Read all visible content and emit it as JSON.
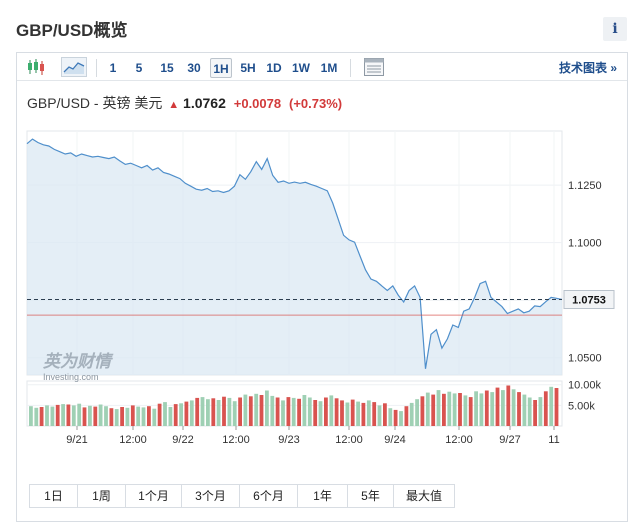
{
  "header": {
    "title": "GBP/USD概览",
    "info_label": "i"
  },
  "toolbar": {
    "chart_type_icons": [
      "candlestick-icon",
      "area-chart-icon"
    ],
    "intervals": [
      "1",
      "5",
      "15",
      "30",
      "1H",
      "5H",
      "1D",
      "1W",
      "1M"
    ],
    "active_interval": "1H",
    "table_icon": "table-icon",
    "tech_chart_label": "技术图表 »"
  },
  "quote": {
    "pair": "GBP/USD - 英镑 美元",
    "price": "1.0762",
    "change": "+0.0078",
    "change_pct": "(+0.73%)",
    "trend_icon": "up-arrow-icon",
    "accent_color": "#d23a3a"
  },
  "watermark": {
    "brand": "英为财情",
    "sub": "Investing.com"
  },
  "chart_data": {
    "type": "line",
    "title": "",
    "xlabel": "",
    "ylabel": "",
    "x_tick_labels": [
      "9/21",
      "12:00",
      "9/22",
      "12:00",
      "9/23",
      "12:00",
      "9/24",
      "12:00",
      "9/27",
      "11"
    ],
    "y_tick_labels": [
      "1.1250",
      "1.1000",
      "1.0750",
      "1.0500"
    ],
    "y_ticks": [
      1.125,
      1.1,
      1.075,
      1.05
    ],
    "ylim": [
      1.0425,
      1.1485
    ],
    "current_price_label": "1.0753",
    "current_price": 1.0753,
    "reference_price": 1.0685,
    "grid": true,
    "series": [
      {
        "values": [
          1.143,
          1.145,
          1.1435,
          1.1425,
          1.142,
          1.1405,
          1.1395,
          1.1385,
          1.139,
          1.1375,
          1.1385,
          1.1378,
          1.1372,
          1.1375,
          1.137,
          1.1365,
          1.1372,
          1.1355,
          1.134,
          1.1345,
          1.1335,
          1.1325,
          1.1335,
          1.1315,
          1.1325,
          1.1305,
          1.1298,
          1.1288,
          1.1278,
          1.1258,
          1.1245,
          1.1232,
          1.1228,
          1.1235,
          1.1222,
          1.1225,
          1.1218,
          1.1225,
          1.1245,
          1.1295,
          1.1275,
          1.1308,
          1.1352,
          1.1318,
          1.1365,
          1.1292,
          1.1262,
          1.1268,
          1.1258,
          1.1263,
          1.1258,
          1.1262,
          1.1253,
          1.1245,
          1.1235,
          1.1225,
          1.1172,
          1.1102,
          1.1032,
          1.1012,
          1.1002,
          1.0942,
          1.0882,
          1.0842,
          1.0832,
          1.0812,
          1.0792,
          1.0812,
          1.0772,
          1.0742,
          1.0792,
          1.0812,
          1.0762,
          1.0452,
          1.0602,
          1.0622,
          1.0542,
          1.0582,
          1.0642,
          1.0632,
          1.0702,
          1.0712,
          1.0762,
          1.0822,
          1.0832,
          1.0762,
          1.0742,
          1.0722,
          1.0692,
          1.0702,
          1.0712,
          1.0695,
          1.0702,
          1.0725,
          1.0722,
          1.0743,
          1.0762,
          1.0758,
          1.0753
        ]
      }
    ],
    "volume": {
      "y_tick_labels": [
        "10.00k",
        "5.00k"
      ],
      "y_ticks": [
        10000,
        5000
      ],
      "ylim": [
        0,
        10900
      ],
      "up_color": "#9fd0b4",
      "down_color": "#d9534f",
      "values": [
        4800,
        4400,
        4600,
        5000,
        4700,
        5100,
        5300,
        5200,
        5000,
        5400,
        4500,
        4900,
        4700,
        5200,
        4800,
        4300,
        4100,
        4600,
        4400,
        5000,
        4700,
        4500,
        4800,
        4200,
        5400,
        5800,
        4600,
        5300,
        5500,
        5900,
        6200,
        6800,
        7000,
        6500,
        6700,
        6300,
        7100,
        6800,
        6000,
        6900,
        7600,
        7200,
        7800,
        7500,
        8600,
        7300,
        6900,
        6200,
        7000,
        6800,
        6600,
        7500,
        6900,
        6300,
        6000,
        6900,
        7400,
        6700,
        6200,
        5700,
        6400,
        5900,
        5600,
        6200,
        5800,
        5000,
        5500,
        4300,
        3900,
        3600,
        4800,
        5600,
        6500,
        7200,
        8100,
        7600,
        8700,
        7800,
        8300,
        7900,
        8000,
        7400,
        7000,
        8400,
        7900,
        8600,
        8200,
        9300,
        8700,
        9800,
        8900,
        8200,
        7600,
        6900,
        6300,
        7000,
        8400,
        9500,
        9200
      ],
      "up": [
        true,
        true,
        false,
        true,
        true,
        false,
        true,
        false,
        true,
        true,
        false,
        true,
        false,
        true,
        true,
        false,
        true,
        false,
        true,
        false,
        true,
        true,
        false,
        true,
        false,
        true,
        true,
        false,
        true,
        false,
        true,
        false,
        true,
        true,
        false,
        true,
        false,
        true,
        true,
        false,
        true,
        false,
        true,
        false,
        true,
        true,
        false,
        true,
        false,
        true,
        false,
        true,
        true,
        false,
        true,
        false,
        true,
        false,
        false,
        true,
        false,
        true,
        false,
        true,
        false,
        true,
        false,
        true,
        false,
        true,
        false,
        true,
        true,
        false,
        true,
        false,
        true,
        false,
        true,
        true,
        false,
        true,
        false,
        true,
        true,
        false,
        true,
        false,
        true,
        false,
        true,
        false,
        true,
        true,
        false,
        true,
        false,
        true,
        false
      ]
    }
  },
  "ranges": [
    "1日",
    "1周",
    "1个月",
    "3个月",
    "6个月",
    "1年",
    "5年",
    "最大值"
  ]
}
